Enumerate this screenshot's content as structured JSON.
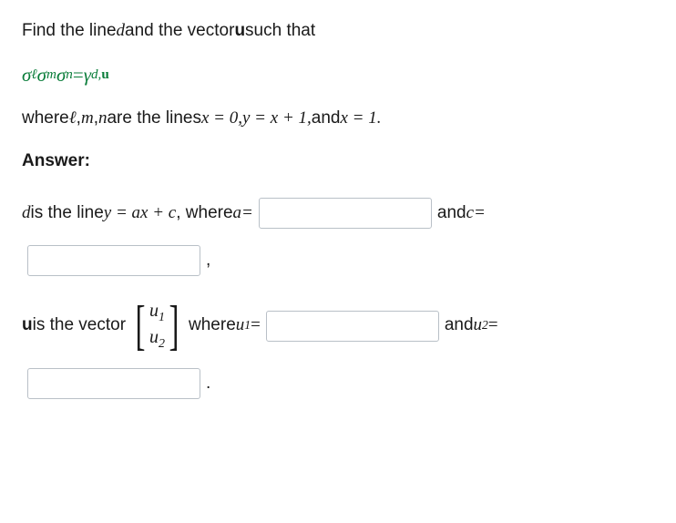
{
  "problem": {
    "intro_prefix": "Find the line ",
    "intro_d": "d",
    "intro_mid": " and the vector ",
    "intro_u": "u",
    "intro_suffix": " such that",
    "equation_lhs_sigma1": "σ",
    "equation_lhs_sub1": "ℓ",
    "equation_lhs_sigma2": "σ",
    "equation_lhs_sub2": "m",
    "equation_lhs_sigma3": "σ",
    "equation_lhs_sub3": "n",
    "equation_eq": " = ",
    "equation_rhs_gamma": "γ",
    "equation_rhs_sub_d": "d",
    "equation_rhs_comma": ",",
    "equation_rhs_sub_u": "u",
    "where_prefix": "where ",
    "where_l": "ℓ",
    "where_sep1": ", ",
    "where_m": "m",
    "where_sep2": ", ",
    "where_n": "n",
    "where_are": " are the lines ",
    "line1": "x = 0,",
    "line2": " y = x + 1, ",
    "and_text": " and ",
    "line3": "x = 1.",
    "answer_label": "Answer:"
  },
  "answer": {
    "d_prefix": "d",
    "d_is": " is the line ",
    "d_eq": "y = ax + c",
    "d_where": ", where ",
    "a_label": "a=",
    "c_label": " and ",
    "c_eq": "c=",
    "u_prefix": "u",
    "u_is": " is the vector ",
    "vec_u1": "u",
    "vec_u1_sub": "1",
    "vec_u2": "u",
    "vec_u2_sub": "2",
    "u_where": " where ",
    "u1_label_var": "u",
    "u1_label_sub": "1",
    "u1_eq": " = ",
    "u2_and": " and ",
    "u2_label_var": "u",
    "u2_label_sub": "2",
    "u2_eq": " = ",
    "comma": ",",
    "period": "."
  }
}
